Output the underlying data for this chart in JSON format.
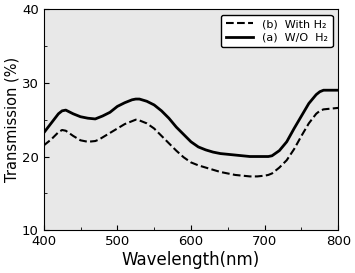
{
  "title": "",
  "xlabel": "Wavelength(nm)",
  "ylabel": "Transmission (%)",
  "xlim": [
    400,
    800
  ],
  "ylim": [
    10,
    40
  ],
  "xticks": [
    400,
    500,
    600,
    700,
    800
  ],
  "yticks": [
    10,
    20,
    30,
    40
  ],
  "legend": [
    {
      "label": "(b)  With H₂",
      "linestyle": "--",
      "color": "black",
      "linewidth": 1.5
    },
    {
      "label": "(a)  W/O  H₂",
      "linestyle": "-",
      "color": "black",
      "linewidth": 2.0
    }
  ],
  "curve_solid_x": [
    400,
    410,
    420,
    425,
    430,
    440,
    450,
    460,
    470,
    475,
    480,
    490,
    500,
    510,
    520,
    525,
    530,
    540,
    550,
    560,
    570,
    580,
    590,
    600,
    610,
    620,
    630,
    640,
    650,
    660,
    670,
    680,
    690,
    700,
    705,
    710,
    720,
    730,
    740,
    750,
    760,
    770,
    775,
    780,
    790,
    800
  ],
  "curve_solid_y": [
    23.2,
    24.5,
    25.8,
    26.2,
    26.3,
    25.8,
    25.4,
    25.2,
    25.1,
    25.3,
    25.5,
    26.0,
    26.8,
    27.3,
    27.7,
    27.8,
    27.8,
    27.5,
    27.0,
    26.2,
    25.2,
    24.0,
    23.0,
    22.0,
    21.3,
    20.9,
    20.6,
    20.4,
    20.3,
    20.2,
    20.1,
    20.0,
    20.0,
    20.0,
    20.0,
    20.1,
    20.8,
    22.0,
    23.8,
    25.5,
    27.2,
    28.4,
    28.8,
    29.0,
    29.0,
    29.0
  ],
  "curve_dashed_x": [
    400,
    410,
    420,
    425,
    430,
    440,
    450,
    460,
    470,
    475,
    480,
    490,
    500,
    510,
    520,
    525,
    530,
    540,
    550,
    560,
    570,
    580,
    590,
    600,
    610,
    620,
    630,
    640,
    650,
    660,
    670,
    680,
    690,
    700,
    705,
    710,
    720,
    730,
    740,
    750,
    760,
    770,
    775,
    780,
    790,
    800
  ],
  "curve_dashed_y": [
    21.5,
    22.3,
    23.3,
    23.6,
    23.5,
    22.8,
    22.2,
    22.0,
    22.1,
    22.3,
    22.6,
    23.2,
    23.8,
    24.4,
    24.8,
    25.0,
    24.9,
    24.5,
    23.8,
    22.8,
    21.8,
    20.8,
    19.9,
    19.2,
    18.8,
    18.5,
    18.2,
    17.9,
    17.7,
    17.5,
    17.4,
    17.3,
    17.3,
    17.4,
    17.5,
    17.7,
    18.5,
    19.5,
    21.0,
    22.8,
    24.5,
    25.8,
    26.2,
    26.4,
    26.5,
    26.6
  ],
  "background_color": "#ffffff",
  "axes_facecolor": "#e8e8e8",
  "figsize": [
    3.55,
    2.73
  ],
  "dpi": 100
}
